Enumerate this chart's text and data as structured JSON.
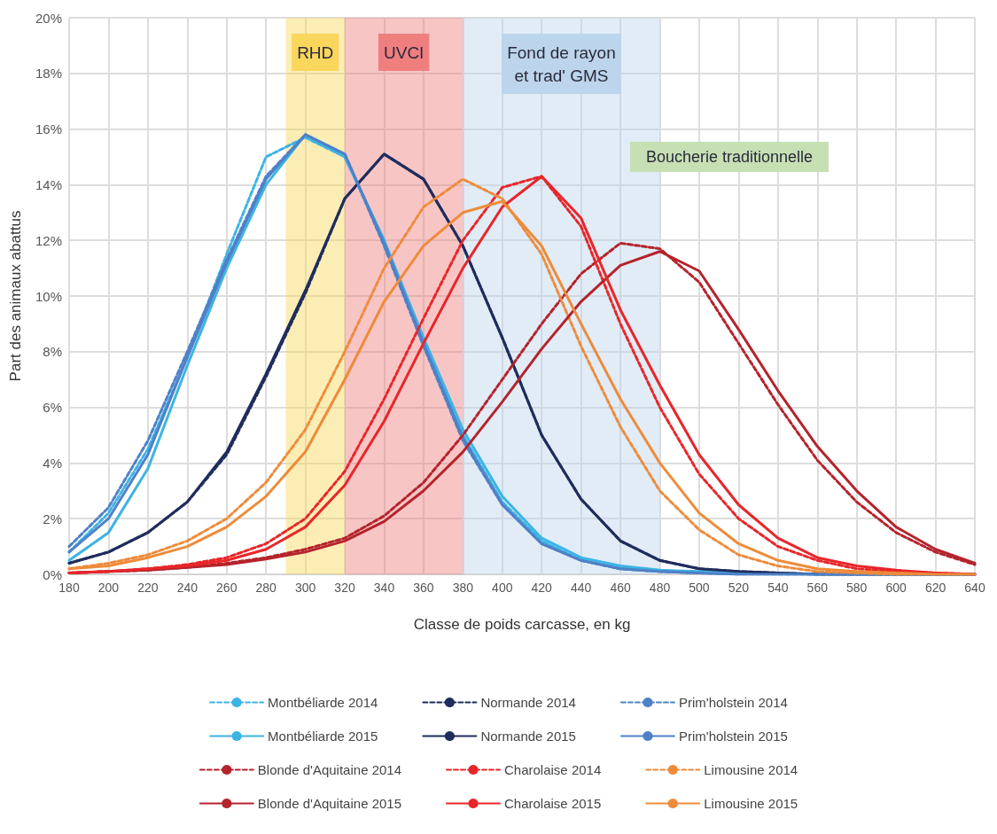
{
  "chart_data": {
    "type": "line",
    "xlabel": "Classe de poids carcasse, en kg",
    "ylabel": "Part des animaux abattus",
    "x": [
      180,
      200,
      220,
      240,
      260,
      280,
      300,
      320,
      340,
      360,
      380,
      400,
      420,
      440,
      460,
      480,
      500,
      520,
      540,
      560,
      580,
      600,
      620,
      640
    ],
    "xlim": [
      180,
      640
    ],
    "xticks": [
      180,
      200,
      220,
      240,
      260,
      280,
      300,
      320,
      340,
      360,
      380,
      400,
      420,
      440,
      460,
      480,
      500,
      520,
      540,
      560,
      580,
      600,
      620,
      640
    ],
    "ylim": [
      0,
      20
    ],
    "yticks": [
      {
        "value": 0,
        "label": "0%"
      },
      {
        "value": 2,
        "label": "2%"
      },
      {
        "value": 4,
        "label": "4%"
      },
      {
        "value": 6,
        "label": "6%"
      },
      {
        "value": 8,
        "label": "8%"
      },
      {
        "value": 10,
        "label": "10%"
      },
      {
        "value": 12,
        "label": "12%"
      },
      {
        "value": 14,
        "label": "14%"
      },
      {
        "value": 16,
        "label": "16%"
      },
      {
        "value": 18,
        "label": "18%"
      },
      {
        "value": 20,
        "label": "20%"
      }
    ],
    "grid": true,
    "legend": "bottom",
    "marker": "none",
    "bands": [
      {
        "axis": "x",
        "from": 290,
        "to": 320,
        "label": "RHD",
        "color": "#f9d65c"
      },
      {
        "axis": "x",
        "from": 320,
        "to": 380,
        "label": "UVCI",
        "color": "#ef7f7f"
      },
      {
        "axis": "x",
        "from": 380,
        "to": 480,
        "label": "Fond de rayon\net trad' GMS",
        "color": "#bcd5ec"
      }
    ],
    "annotations": [
      "Boucherie traditionnelle"
    ],
    "series": [
      {
        "name": "Montbéliarde 2014",
        "color": "#3cb4e5",
        "line_style": "dashed",
        "values": [
          0.8,
          2.2,
          4.5,
          7.8,
          11.5,
          15,
          15.7,
          15,
          12,
          8.3,
          5,
          2.6,
          1.2,
          0.5,
          0.2,
          0.1,
          0.05,
          0.05,
          0,
          0,
          0,
          0,
          0,
          0
        ]
      },
      {
        "name": "Normande 2014",
        "color": "#1f2d5c",
        "line_style": "dashed",
        "values": [
          0.4,
          0.8,
          1.5,
          2.6,
          4.3,
          7.1,
          10.1,
          13.5,
          15.1,
          14.2,
          11.8,
          8.5,
          5,
          2.7,
          1.2,
          0.5,
          0.2,
          0.1,
          0.05,
          0,
          0,
          0,
          0,
          0
        ]
      },
      {
        "name": "Prim'holstein 2014",
        "color": "#4f81c7",
        "line_style": "dashed",
        "values": [
          1,
          2.4,
          4.8,
          8,
          11.3,
          14.3,
          15.8,
          15.1,
          11.8,
          8.2,
          4.8,
          2.5,
          1.1,
          0.5,
          0.2,
          0.1,
          0.05,
          0,
          0,
          0,
          0,
          0,
          0,
          0
        ]
      },
      {
        "name": "Montbéliarde 2015",
        "color": "#3cb4e5",
        "line_style": "solid",
        "values": [
          0.5,
          1.5,
          3.8,
          7.5,
          11,
          14,
          15.8,
          15,
          12,
          8.5,
          5.2,
          2.8,
          1.3,
          0.6,
          0.3,
          0.15,
          0.1,
          0.05,
          0.05,
          0,
          0,
          0,
          0,
          0
        ]
      },
      {
        "name": "Normande 2015",
        "color": "#1f2d5c",
        "line_style": "solid",
        "values": [
          0.4,
          0.8,
          1.5,
          2.6,
          4.4,
          7.2,
          10.2,
          13.5,
          15.1,
          14.2,
          11.8,
          8.5,
          5,
          2.7,
          1.2,
          0.5,
          0.2,
          0.1,
          0.05,
          0,
          0,
          0,
          0,
          0
        ]
      },
      {
        "name": "Prim'holstein 2015",
        "color": "#4f81c7",
        "line_style": "solid",
        "values": [
          0.8,
          2,
          4.3,
          7.8,
          11.2,
          14.2,
          15.8,
          15.1,
          11.9,
          8.3,
          4.9,
          2.5,
          1.1,
          0.5,
          0.2,
          0.1,
          0.05,
          0,
          0,
          0,
          0,
          0,
          0,
          0
        ]
      },
      {
        "name": "Blonde d'Aquitaine 2014",
        "color": "#b5232c",
        "line_style": "dashed",
        "values": [
          0.05,
          0.1,
          0.15,
          0.25,
          0.4,
          0.6,
          0.9,
          1.3,
          2.1,
          3.3,
          5,
          7,
          9,
          10.8,
          11.9,
          11.7,
          10.5,
          8.3,
          6.1,
          4.1,
          2.6,
          1.5,
          0.8,
          0.35
        ]
      },
      {
        "name": "Charolaise 2014",
        "color": "#e8262a",
        "line_style": "dashed",
        "values": [
          0.05,
          0.1,
          0.2,
          0.35,
          0.6,
          1.1,
          2,
          3.7,
          6.3,
          9.2,
          12,
          13.9,
          14.3,
          12.5,
          9,
          6,
          3.6,
          2,
          1,
          0.5,
          0.2,
          0.1,
          0.05,
          0
        ]
      },
      {
        "name": "Limousine 2014",
        "color": "#ee8b3a",
        "line_style": "dashed",
        "values": [
          0.2,
          0.4,
          0.7,
          1.2,
          2,
          3.3,
          5.2,
          8,
          11,
          13.2,
          14.2,
          13.5,
          11.5,
          8.2,
          5.3,
          3,
          1.6,
          0.7,
          0.3,
          0.1,
          0.05,
          0,
          0,
          0
        ]
      },
      {
        "name": "Blonde d'Aquitaine 2015",
        "color": "#b5232c",
        "line_style": "solid",
        "values": [
          0.05,
          0.1,
          0.15,
          0.25,
          0.35,
          0.55,
          0.8,
          1.2,
          1.9,
          3,
          4.4,
          6.2,
          8.1,
          9.8,
          11.1,
          11.6,
          10.9,
          8.8,
          6.6,
          4.6,
          3,
          1.7,
          0.9,
          0.4
        ]
      },
      {
        "name": "Charolaise 2015",
        "color": "#e8262a",
        "line_style": "solid",
        "values": [
          0.05,
          0.1,
          0.2,
          0.3,
          0.5,
          0.9,
          1.7,
          3.2,
          5.5,
          8.3,
          11,
          13.2,
          14.3,
          12.8,
          9.5,
          6.8,
          4.3,
          2.5,
          1.3,
          0.6,
          0.3,
          0.15,
          0.05,
          0
        ]
      },
      {
        "name": "Limousine 2015",
        "color": "#ee8b3a",
        "line_style": "solid",
        "values": [
          0.2,
          0.3,
          0.6,
          1,
          1.7,
          2.8,
          4.4,
          7,
          9.8,
          11.8,
          13,
          13.4,
          11.8,
          9,
          6.3,
          4,
          2.2,
          1.1,
          0.5,
          0.2,
          0.1,
          0.05,
          0,
          0
        ]
      }
    ]
  }
}
